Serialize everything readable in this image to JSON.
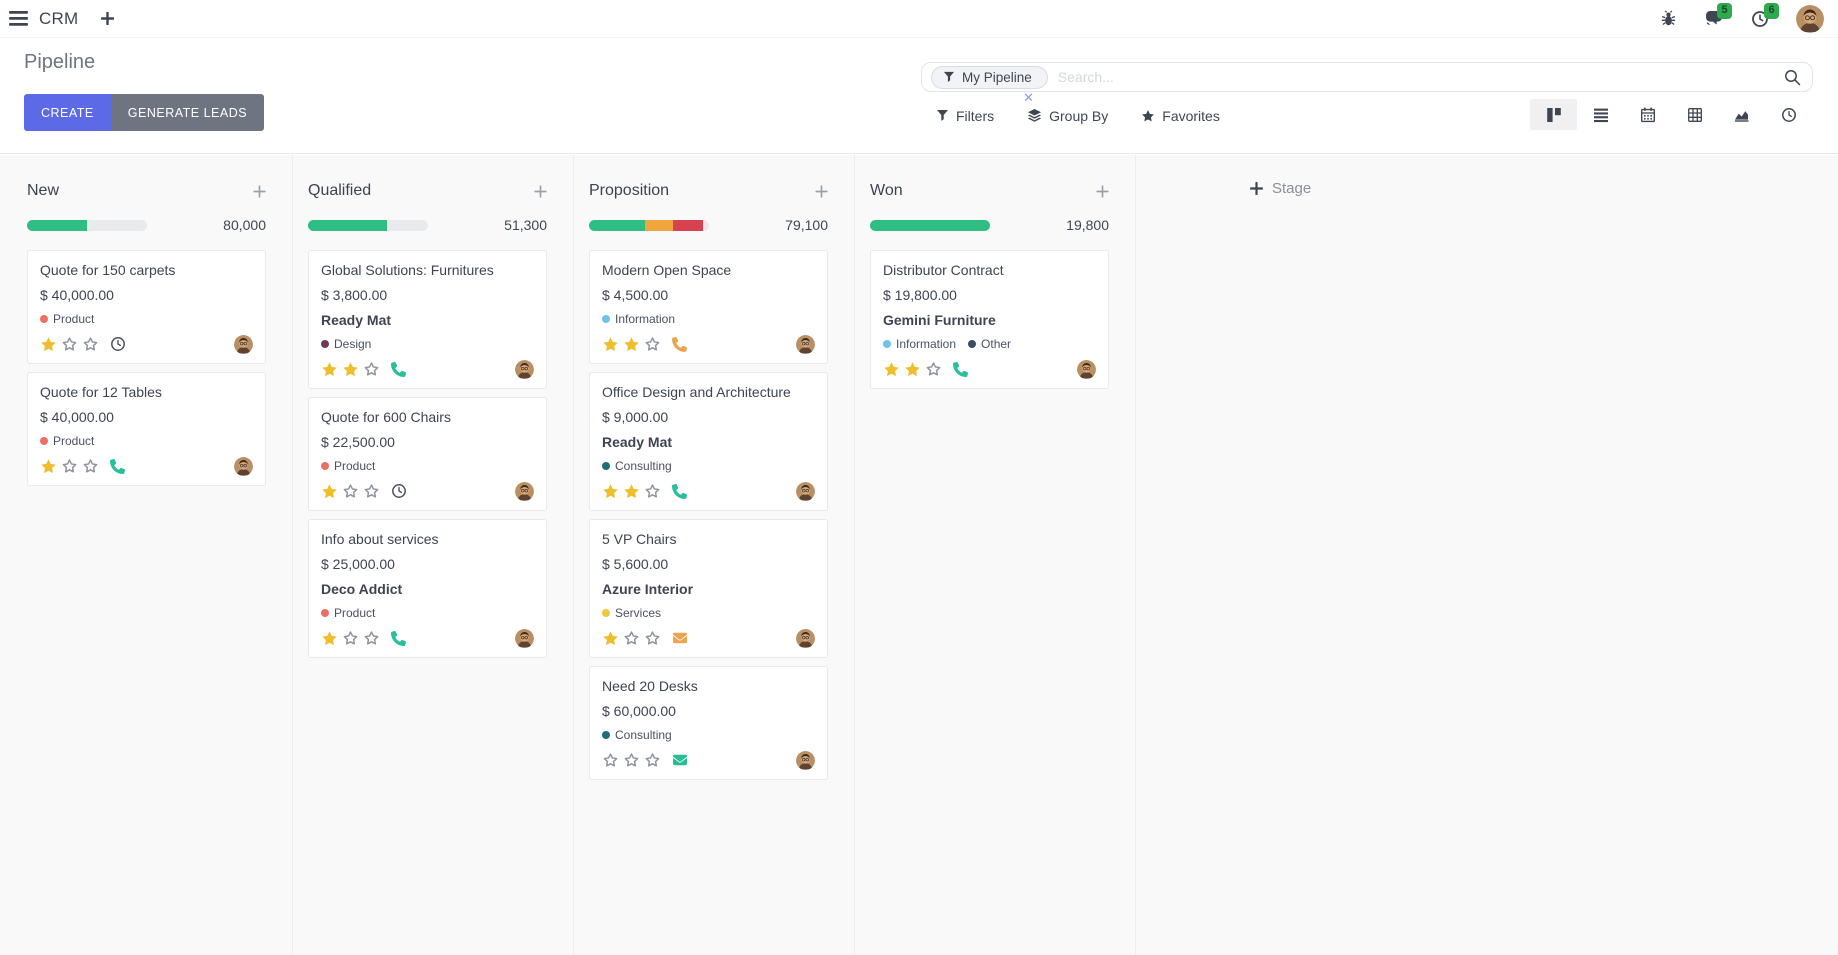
{
  "navbar": {
    "app_name": "CRM",
    "messages_badge": "5",
    "activities_badge": "6"
  },
  "control_panel": {
    "title": "Pipeline",
    "buttons": {
      "create": "CREATE",
      "generate_leads": "GENERATE LEADS"
    },
    "search": {
      "facet_label": "My Pipeline",
      "placeholder": "Search..."
    },
    "menus": {
      "filters": "Filters",
      "group_by": "Group By",
      "favorites": "Favorites"
    },
    "view_switcher": [
      "kanban",
      "list",
      "calendar",
      "pivot",
      "graph",
      "activity"
    ]
  },
  "kanban": {
    "add_stage_label": "Stage",
    "columns": [
      {
        "name": "New",
        "total": "80,000",
        "progress": [
          {
            "color": "#2ebe84",
            "pct": 50
          }
        ],
        "cards": [
          {
            "title": "Quote for 150 carpets",
            "amount": "$ 40,000.00",
            "tags": [
              {
                "label": "Product",
                "color": "#ed6f62"
              }
            ],
            "stars": 1,
            "activity": {
              "icon": "clock",
              "color": "#4b5260"
            }
          },
          {
            "title": "Quote for 12 Tables",
            "amount": "$ 40,000.00",
            "tags": [
              {
                "label": "Product",
                "color": "#ed6f62"
              }
            ],
            "stars": 1,
            "activity": {
              "icon": "phone",
              "color": "#28bf9a"
            }
          }
        ]
      },
      {
        "name": "Qualified",
        "total": "51,300",
        "progress": [
          {
            "color": "#2ebe84",
            "pct": 66
          }
        ],
        "cards": [
          {
            "title": "Global Solutions: Furnitures",
            "amount": "$ 3,800.00",
            "partner": "Ready Mat",
            "tags": [
              {
                "label": "Design",
                "color": "#6e3b57"
              }
            ],
            "stars": 2,
            "activity": {
              "icon": "phone",
              "color": "#28bf9a"
            }
          },
          {
            "title": "Quote for 600 Chairs",
            "amount": "$ 22,500.00",
            "tags": [
              {
                "label": "Product",
                "color": "#ed6f62"
              }
            ],
            "stars": 1,
            "activity": {
              "icon": "clock",
              "color": "#4b5260"
            }
          },
          {
            "title": "Info about services",
            "amount": "$ 25,000.00",
            "partner": "Deco Addict",
            "tags": [
              {
                "label": "Product",
                "color": "#ed6f62"
              }
            ],
            "stars": 1,
            "activity": {
              "icon": "phone",
              "color": "#28bf9a"
            }
          }
        ]
      },
      {
        "name": "Proposition",
        "total": "79,100",
        "progress": [
          {
            "color": "#2ebe84",
            "pct": 47
          },
          {
            "color": "#f0a63c",
            "pct": 23
          },
          {
            "color": "#d8414f",
            "pct": 25
          }
        ],
        "cards": [
          {
            "title": "Modern Open Space",
            "amount": "$ 4,500.00",
            "tags": [
              {
                "label": "Information",
                "color": "#6ec1e8"
              }
            ],
            "stars": 2,
            "activity": {
              "icon": "phone",
              "color": "#eda44f"
            }
          },
          {
            "title": "Office Design and Architecture",
            "amount": "$ 9,000.00",
            "partner": "Ready Mat",
            "tags": [
              {
                "label": "Consulting",
                "color": "#1f6e78"
              }
            ],
            "stars": 2,
            "activity": {
              "icon": "phone",
              "color": "#28bf9a"
            }
          },
          {
            "title": "5 VP Chairs",
            "amount": "$ 5,600.00",
            "partner": "Azure Interior",
            "tags": [
              {
                "label": "Services",
                "color": "#edc843"
              }
            ],
            "stars": 1,
            "activity": {
              "icon": "mail",
              "color": "#eda44f"
            }
          },
          {
            "title": "Need 20 Desks",
            "amount": "$ 60,000.00",
            "tags": [
              {
                "label": "Consulting",
                "color": "#1f6e78"
              }
            ],
            "stars": 0,
            "activity": {
              "icon": "mail",
              "color": "#26be92"
            }
          }
        ]
      },
      {
        "name": "Won",
        "total": "19,800",
        "progress": [
          {
            "color": "#2ebe84",
            "pct": 100
          }
        ],
        "cards": [
          {
            "title": "Distributor Contract",
            "amount": "$ 19,800.00",
            "partner": "Gemini Furniture",
            "tags": [
              {
                "label": "Information",
                "color": "#6ec1e8"
              },
              {
                "label": "Other",
                "color": "#3d4a66"
              }
            ],
            "stars": 2,
            "activity": {
              "icon": "phone",
              "color": "#28bf9a"
            }
          }
        ]
      }
    ]
  },
  "colors": {
    "primary": "#5d6ae8",
    "secondary": "#6e7580",
    "success": "#2ebe84",
    "warning": "#f0a63c",
    "danger": "#d8414f",
    "star_active": "#efbe2d",
    "star_inactive": "#8f959e",
    "badge": "#2fa84e"
  }
}
